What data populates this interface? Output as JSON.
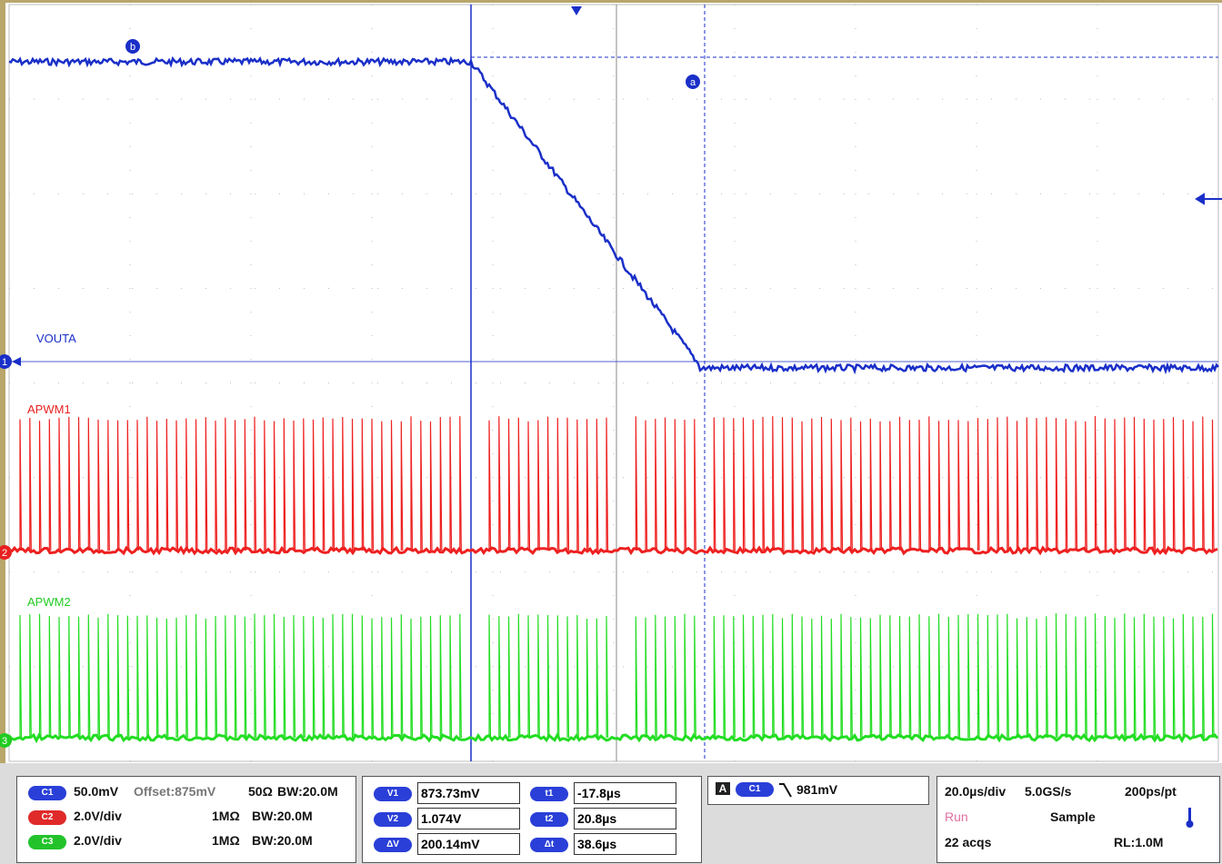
{
  "traces": [
    {
      "label": "VOUTA",
      "ref": "1"
    },
    {
      "label": "APWM1",
      "ref": "2"
    },
    {
      "label": "APWM2",
      "ref": "3"
    }
  ],
  "cursor_labels": [
    "b",
    "a"
  ],
  "channels": [
    {
      "badge": "C1",
      "scale": "50.0mV",
      "offset": "Offset:875mV",
      "impedance": "50Ω",
      "bandwidth": "BW:20.0M"
    },
    {
      "badge": "C2",
      "scale": "2.0V/div",
      "impedance": "1MΩ",
      "bandwidth": "BW:20.0M"
    },
    {
      "badge": "C3",
      "scale": "2.0V/div",
      "impedance": "1MΩ",
      "bandwidth": "BW:20.0M"
    }
  ],
  "cursors": [
    {
      "badge": "V1",
      "value": "873.73mV",
      "time_badge": "t1",
      "time_value": "-17.8µs"
    },
    {
      "badge": "V2",
      "value": "1.074V",
      "time_badge": "t2",
      "time_value": "20.8µs"
    },
    {
      "badge": "ΔV",
      "value": "200.14mV",
      "time_badge": "Δt",
      "time_value": "38.6µs"
    }
  ],
  "trigger": {
    "mode": "A",
    "source": "C1",
    "level": "981mV"
  },
  "acquisition": {
    "horizontal": "20.0µs/div",
    "sample_rate": "5.0GS/s",
    "resolution": "200ps/pt",
    "state": "Run",
    "mode": "Sample",
    "count": "22 acqs",
    "record_length": "RL:1.0M"
  }
}
